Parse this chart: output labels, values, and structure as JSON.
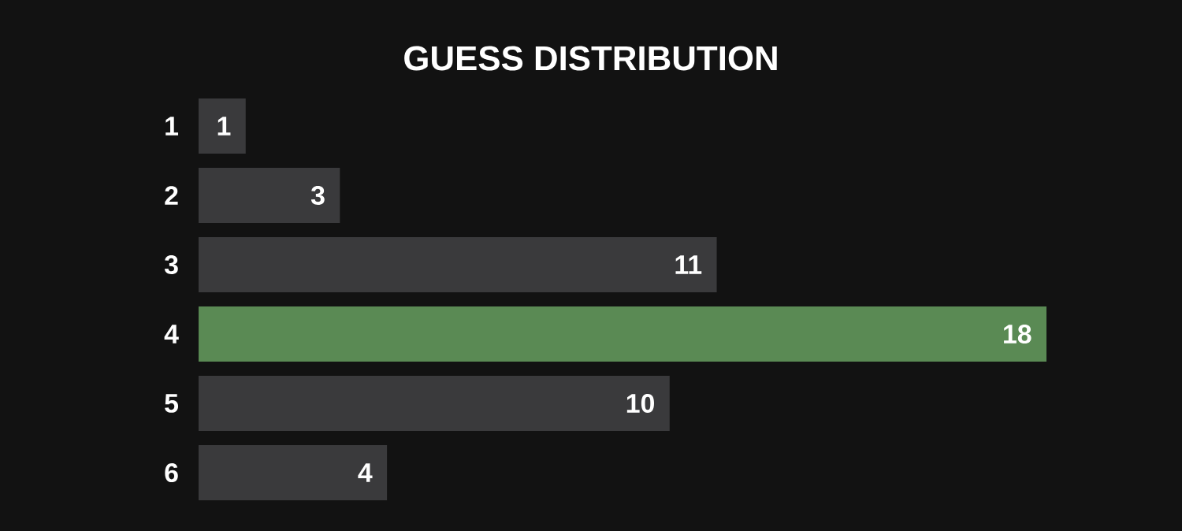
{
  "chart_data": {
    "type": "bar",
    "orientation": "horizontal",
    "title": "GUESS DISTRIBUTION",
    "categories": [
      "1",
      "2",
      "3",
      "4",
      "5",
      "6"
    ],
    "values": [
      1,
      3,
      11,
      18,
      10,
      4
    ],
    "colors": [
      "#3a3a3c",
      "#3a3a3c",
      "#3a3a3c",
      "#5a8a54",
      "#3a3a3c",
      "#3a3a3c"
    ],
    "data_labels": true
  }
}
